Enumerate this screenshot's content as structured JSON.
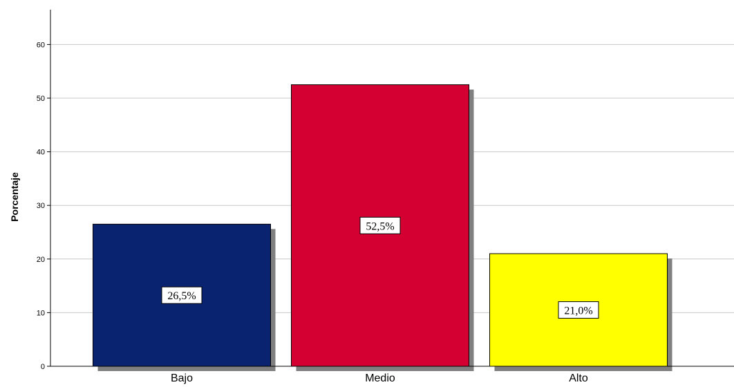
{
  "chart_data": {
    "type": "bar",
    "categories": [
      "Bajo",
      "Medio",
      "Alto"
    ],
    "values": [
      26.5,
      52.5,
      21.0
    ],
    "data_labels": [
      "26,5%",
      "52,5%",
      "21,0%"
    ],
    "colors": [
      "#0a2370",
      "#d50032",
      "#ffff00"
    ],
    "title": "",
    "xlabel": "",
    "ylabel": "Porcentaje",
    "ylim": [
      0,
      65
    ],
    "yticks": [
      0,
      10,
      20,
      30,
      40,
      50,
      60
    ],
    "ytick_labels": [
      "0",
      "10",
      "20",
      "30",
      "40",
      "50",
      "60"
    ],
    "grid": true,
    "legend": "none"
  }
}
